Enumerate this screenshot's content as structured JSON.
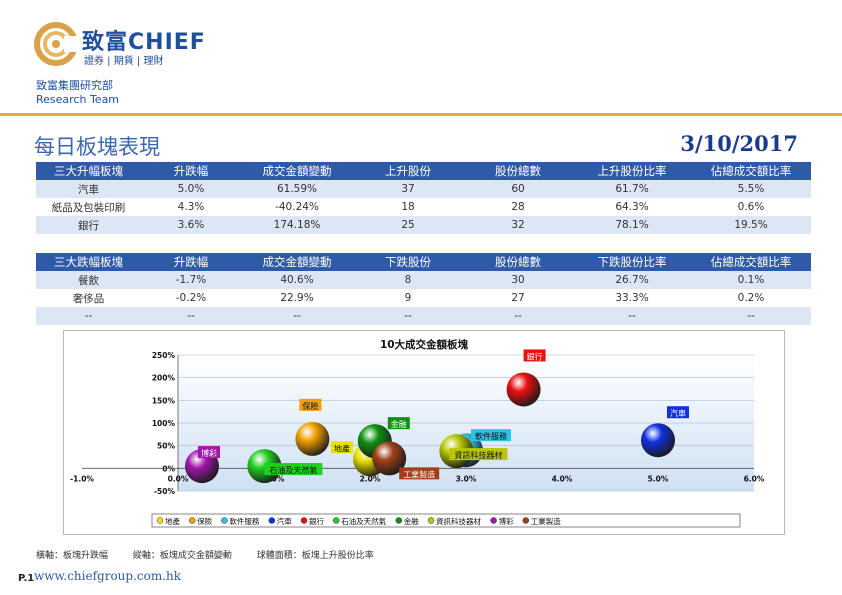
{
  "header": {
    "brand_cn": "致富",
    "brand_en": "CHIEF",
    "brand_sub": "證券 | 期貨 | 理財",
    "dept_cn": "致富集團研究部",
    "dept_en": "Research Team"
  },
  "page_title": "每日板塊表現",
  "page_date": "3/10/2017",
  "colors": {
    "brand_blue": "#1e4fa0",
    "header_blue": "#2f5aa8",
    "stripe": "#dce6f4",
    "rule_gold": "#e0a84a"
  },
  "table_up": {
    "headers": [
      "三大升幅板塊",
      "升跌幅",
      "成交金額變動",
      "上升股份",
      "股份總數",
      "上升股份比率",
      "佔總成交額比率"
    ],
    "rows": [
      [
        "汽車",
        "5.0%",
        "61.59%",
        "37",
        "60",
        "61.7%",
        "5.5%"
      ],
      [
        "紙品及包裝印刷",
        "4.3%",
        "-40.24%",
        "18",
        "28",
        "64.3%",
        "0.6%"
      ],
      [
        "銀行",
        "3.6%",
        "174.18%",
        "25",
        "32",
        "78.1%",
        "19.5%"
      ]
    ]
  },
  "table_down": {
    "headers": [
      "三大跌幅板塊",
      "升跌幅",
      "成交金額變動",
      "下跌股份",
      "股份總數",
      "下跌股份比率",
      "佔總成交額比率"
    ],
    "rows": [
      [
        "餐飲",
        "-1.7%",
        "40.6%",
        "8",
        "30",
        "26.7%",
        "0.1%"
      ],
      [
        "奢侈品",
        "-0.2%",
        "22.9%",
        "9",
        "27",
        "33.3%",
        "0.2%"
      ],
      [
        "--",
        "--",
        "--",
        "--",
        "--",
        "--",
        "--"
      ]
    ]
  },
  "chart_data": {
    "type": "bubble",
    "title": "10大成交金額板塊",
    "x_range": [
      -1.0,
      6.0
    ],
    "y_range": [
      -50,
      250
    ],
    "x_ticks": [
      "-1.0%",
      "0.0%",
      "1.0%",
      "2.0%",
      "3.0%",
      "4.0%",
      "5.0%",
      "6.0%"
    ],
    "y_ticks": [
      "-50%",
      "0%",
      "50%",
      "100%",
      "150%",
      "200%",
      "250%"
    ],
    "series": [
      {
        "name": "地產",
        "x": 2.0,
        "y": 20,
        "color": "#e8e000"
      },
      {
        "name": "保險",
        "x": 1.4,
        "y": 65,
        "color": "#f0a000"
      },
      {
        "name": "軟件服務",
        "x": 3.0,
        "y": 40,
        "color": "#30c0e8"
      },
      {
        "name": "汽車",
        "x": 5.0,
        "y": 62,
        "color": "#1030e0"
      },
      {
        "name": "銀行",
        "x": 3.6,
        "y": 174,
        "color": "#e81010"
      },
      {
        "name": "石油及天然氣",
        "x": 0.9,
        "y": 5,
        "color": "#20d020"
      },
      {
        "name": "金融",
        "x": 2.05,
        "y": 60,
        "color": "#109010"
      },
      {
        "name": "資訊科技器材",
        "x": 2.9,
        "y": 38,
        "color": "#b8c800"
      },
      {
        "name": "博彩",
        "x": 0.25,
        "y": 5,
        "color": "#a018a8"
      },
      {
        "name": "工業製造",
        "x": 2.2,
        "y": 22,
        "color": "#a04018"
      }
    ]
  },
  "footnote": {
    "x_note": "橫軸：板塊升跌幅",
    "y_note": "縱軸：板塊成交金額變動",
    "size_note": "球體面積：板塊上升股份比率"
  },
  "page_number": "P.1",
  "website": "www.chiefgroup.com.hk"
}
